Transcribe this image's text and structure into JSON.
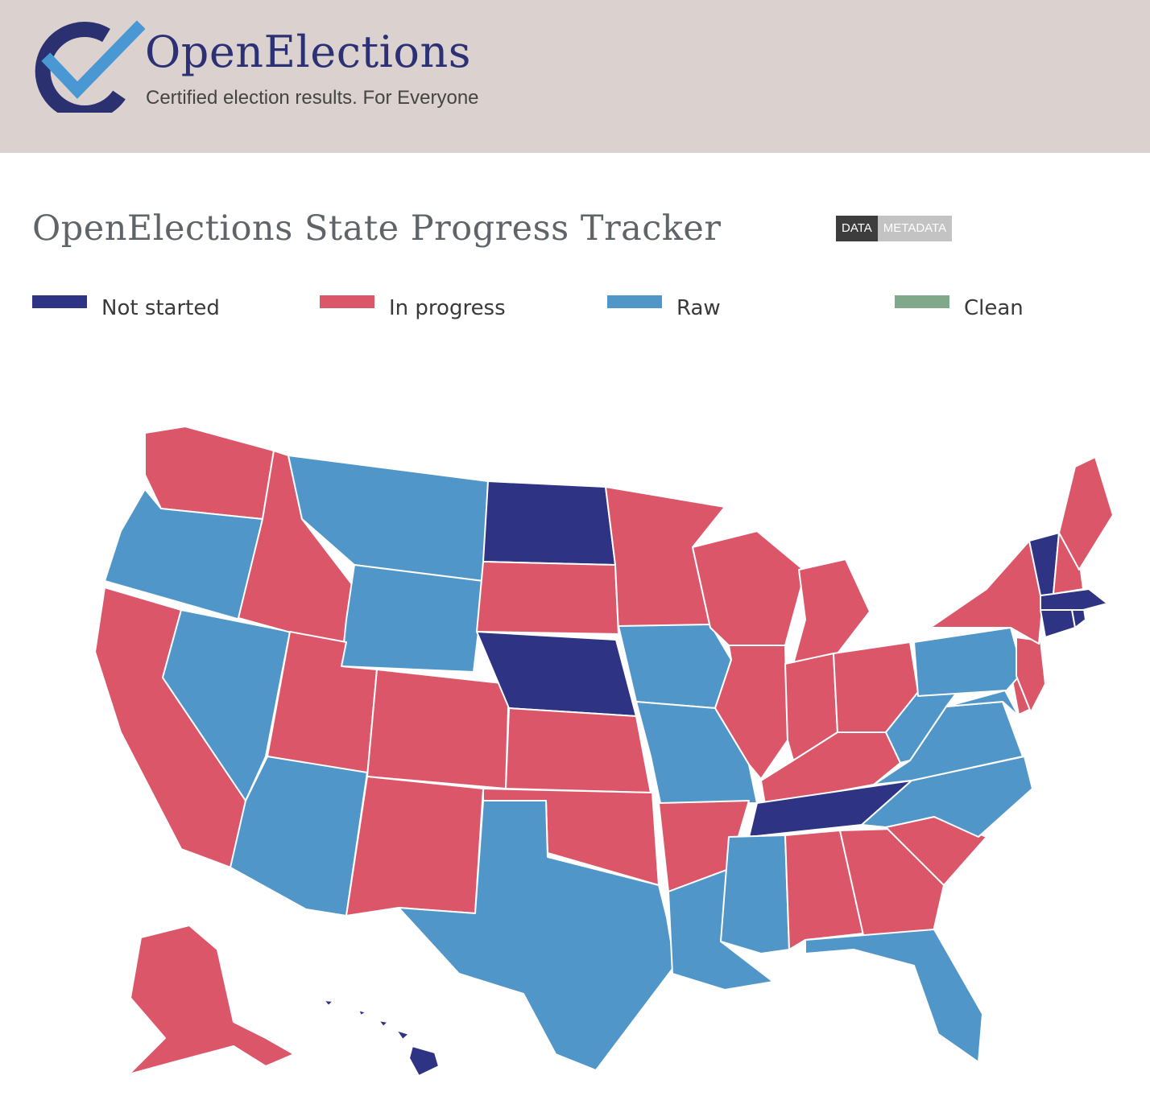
{
  "header": {
    "logo_text": "OpenElections",
    "tagline": "Certified election results. For Everyone"
  },
  "title": "OpenElections State Progress Tracker",
  "toggle": {
    "data_label": "DATA",
    "metadata_label": "METADATA",
    "selected": "DATA"
  },
  "legend": [
    {
      "key": "not_started",
      "label": "Not started",
      "color": "#2e3383"
    },
    {
      "key": "in_progress",
      "label": "In progress",
      "color": "#dc566a"
    },
    {
      "key": "raw",
      "label": "Raw",
      "color": "#5096c8"
    },
    {
      "key": "clean",
      "label": "Clean",
      "color": "#7fa98a"
    }
  ],
  "map": {
    "projection": "albers-usa",
    "states": [
      {
        "code": "WA",
        "status": "in_progress"
      },
      {
        "code": "OR",
        "status": "raw"
      },
      {
        "code": "CA",
        "status": "in_progress"
      },
      {
        "code": "NV",
        "status": "raw"
      },
      {
        "code": "ID",
        "status": "in_progress"
      },
      {
        "code": "MT",
        "status": "raw"
      },
      {
        "code": "WY",
        "status": "raw"
      },
      {
        "code": "UT",
        "status": "in_progress"
      },
      {
        "code": "AZ",
        "status": "raw"
      },
      {
        "code": "CO",
        "status": "in_progress"
      },
      {
        "code": "NM",
        "status": "in_progress"
      },
      {
        "code": "ND",
        "status": "not_started"
      },
      {
        "code": "SD",
        "status": "in_progress"
      },
      {
        "code": "NE",
        "status": "not_started"
      },
      {
        "code": "KS",
        "status": "in_progress"
      },
      {
        "code": "OK",
        "status": "in_progress"
      },
      {
        "code": "TX",
        "status": "raw"
      },
      {
        "code": "MN",
        "status": "in_progress"
      },
      {
        "code": "IA",
        "status": "raw"
      },
      {
        "code": "MO",
        "status": "raw"
      },
      {
        "code": "AR",
        "status": "in_progress"
      },
      {
        "code": "LA",
        "status": "raw"
      },
      {
        "code": "WI",
        "status": "in_progress"
      },
      {
        "code": "IL",
        "status": "in_progress"
      },
      {
        "code": "MI",
        "status": "in_progress"
      },
      {
        "code": "IN",
        "status": "in_progress"
      },
      {
        "code": "OH",
        "status": "in_progress"
      },
      {
        "code": "KY",
        "status": "in_progress"
      },
      {
        "code": "TN",
        "status": "not_started"
      },
      {
        "code": "MS",
        "status": "raw"
      },
      {
        "code": "AL",
        "status": "in_progress"
      },
      {
        "code": "GA",
        "status": "in_progress"
      },
      {
        "code": "FL",
        "status": "raw"
      },
      {
        "code": "SC",
        "status": "in_progress"
      },
      {
        "code": "NC",
        "status": "raw"
      },
      {
        "code": "VA",
        "status": "raw"
      },
      {
        "code": "WV",
        "status": "raw"
      },
      {
        "code": "MD",
        "status": "raw"
      },
      {
        "code": "DE",
        "status": "in_progress"
      },
      {
        "code": "PA",
        "status": "raw"
      },
      {
        "code": "NJ",
        "status": "in_progress"
      },
      {
        "code": "NY",
        "status": "in_progress"
      },
      {
        "code": "CT",
        "status": "not_started"
      },
      {
        "code": "RI",
        "status": "not_started"
      },
      {
        "code": "MA",
        "status": "not_started"
      },
      {
        "code": "VT",
        "status": "not_started"
      },
      {
        "code": "NH",
        "status": "in_progress"
      },
      {
        "code": "ME",
        "status": "in_progress"
      },
      {
        "code": "AK",
        "status": "in_progress"
      },
      {
        "code": "HI",
        "status": "not_started"
      }
    ]
  }
}
